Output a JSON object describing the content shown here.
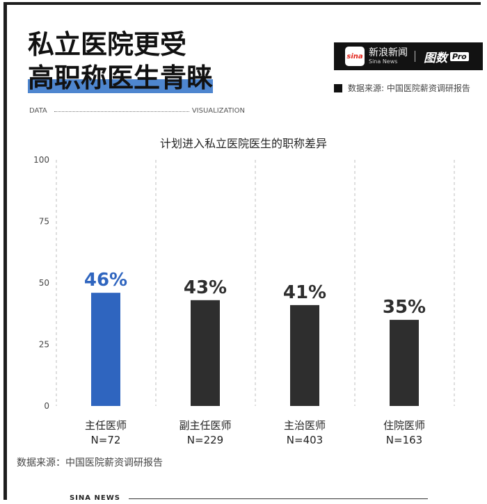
{
  "headline": {
    "line1": "私立医院更受",
    "line2": "高职称医生青睐"
  },
  "brand": {
    "logo": "sina",
    "name_cn": "新浪新闻",
    "name_en": "Sina News",
    "product": "图数",
    "product_tag": "Pro"
  },
  "source_top": "数据来源: 中国医院薪资调研报告",
  "banner": {
    "left": "DATA",
    "right": "VISUALIZATION"
  },
  "footnote": "数据来源：中国医院薪资调研报告",
  "footer": "SINA NEWS",
  "colors": {
    "highlight": "#2f65bf",
    "bar": "#2e2e2e",
    "title_band": "#4e86cf"
  },
  "chart_data": {
    "type": "bar",
    "title": "计划进入私立医院医生的职称差异",
    "categories": [
      "主任医师",
      "副主任医师",
      "主治医师",
      "住院医师"
    ],
    "sample_sizes": [
      "N=72",
      "N=229",
      "N=403",
      "N=163"
    ],
    "values": [
      46,
      43,
      41,
      35
    ],
    "value_labels": [
      "46%",
      "43%",
      "41%",
      "35%"
    ],
    "highlight_index": 0,
    "ylim": [
      0,
      100
    ],
    "yticks": [
      0,
      25,
      50,
      75,
      100
    ],
    "grid": "vertical dashed",
    "xlabel": "",
    "ylabel": ""
  }
}
